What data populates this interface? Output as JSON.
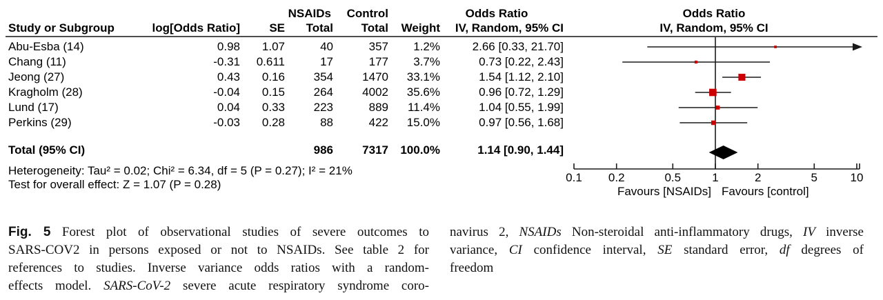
{
  "colors": {
    "marker_red": "#cc0000",
    "line_dark": "#1a1a1a",
    "rule_gray": "#4d4d4d",
    "diamond_black": "#000000"
  },
  "table": {
    "header": {
      "group_nsaids": "NSAIDs",
      "group_control": "Control",
      "col_study": "Study or Subgroup",
      "col_logor": "log[Odds Ratio]",
      "col_se": "SE",
      "col_total_nsaids": "Total",
      "col_total_control": "Total",
      "col_weight": "Weight",
      "col_or_title": "Odds Ratio",
      "col_or_sub": "IV, Random, 95% CI",
      "plot_title": "Odds Ratio",
      "plot_sub": "IV, Random, 95% CI"
    },
    "rows": [
      {
        "study": "Abu-Esba (14)",
        "logor": "0.98",
        "se": "1.07",
        "n_nsaids": "40",
        "n_control": "357",
        "weight": "1.2%",
        "or_ci": "2.66 [0.33, 21.70]"
      },
      {
        "study": "Chang (11)",
        "logor": "-0.31",
        "se": "0.611",
        "n_nsaids": "17",
        "n_control": "177",
        "weight": "3.7%",
        "or_ci": "0.73 [0.22, 2.43]"
      },
      {
        "study": "Jeong (27)",
        "logor": "0.43",
        "se": "0.16",
        "n_nsaids": "354",
        "n_control": "1470",
        "weight": "33.1%",
        "or_ci": "1.54 [1.12, 2.10]"
      },
      {
        "study": "Kragholm (28)",
        "logor": "-0.04",
        "se": "0.15",
        "n_nsaids": "264",
        "n_control": "4002",
        "weight": "35.6%",
        "or_ci": "0.96 [0.72, 1.29]"
      },
      {
        "study": "Lund (17)",
        "logor": "0.04",
        "se": "0.33",
        "n_nsaids": "223",
        "n_control": "889",
        "weight": "11.4%",
        "or_ci": "1.04 [0.55, 1.99]"
      },
      {
        "study": "Perkins (29)",
        "logor": "-0.03",
        "se": "0.28",
        "n_nsaids": "88",
        "n_control": "422",
        "weight": "15.0%",
        "or_ci": "0.97 [0.56, 1.68]"
      }
    ],
    "total": {
      "label": "Total (95% CI)",
      "n_nsaids": "986",
      "n_control": "7317",
      "weight": "100.0%",
      "or_ci": "1.14 [0.90, 1.44]"
    },
    "heterogeneity": "Heterogeneity: Tau² = 0.02; Chi² = 6.34, df = 5 (P = 0.27); I² = 21%",
    "overall_effect": "Test for overall effect: Z = 1.07 (P = 0.28)"
  },
  "chart_data": {
    "type": "forest",
    "title": "Odds Ratio",
    "subtitle": "IV, Random, 95% CI",
    "x_axis": {
      "scale": "log10",
      "min": 0.1,
      "max": 10,
      "ticks": [
        "0.1",
        "0.2",
        "0.5",
        "1",
        "2",
        "5",
        "10"
      ],
      "label_left": "Favours [NSAIDs]",
      "label_right": "Favours [control]"
    },
    "studies": [
      {
        "name": "Abu-Esba (14)",
        "or": 2.66,
        "ci_low": 0.33,
        "ci_high": 21.7,
        "weight_pct": 1.2
      },
      {
        "name": "Chang (11)",
        "or": 0.73,
        "ci_low": 0.22,
        "ci_high": 2.43,
        "weight_pct": 3.7
      },
      {
        "name": "Jeong (27)",
        "or": 1.54,
        "ci_low": 1.12,
        "ci_high": 2.1,
        "weight_pct": 33.1
      },
      {
        "name": "Kragholm (28)",
        "or": 0.96,
        "ci_low": 0.72,
        "ci_high": 1.29,
        "weight_pct": 35.6
      },
      {
        "name": "Lund (17)",
        "or": 1.04,
        "ci_low": 0.55,
        "ci_high": 1.99,
        "weight_pct": 11.4
      },
      {
        "name": "Perkins (29)",
        "or": 0.97,
        "ci_low": 0.56,
        "ci_high": 1.68,
        "weight_pct": 15.0
      }
    ],
    "total": {
      "or": 1.14,
      "ci_low": 0.9,
      "ci_high": 1.44
    }
  },
  "caption": {
    "left_lines": [
      {
        "last": false,
        "segs": [
          {
            "t": "Fig. 5",
            "s": "figbold"
          },
          {
            "t": "  Forest plot of observational studies of severe outcomes to",
            "s": ""
          }
        ]
      },
      {
        "last": false,
        "segs": [
          {
            "t": "SARS-COV2 in persons exposed or not to NSAIDs. See table 2 for",
            "s": ""
          }
        ]
      },
      {
        "last": false,
        "segs": [
          {
            "t": "references to studies. Inverse variance odds ratios with a random-",
            "s": ""
          }
        ]
      },
      {
        "last": false,
        "segs": [
          {
            "t": "effects model. ",
            "s": ""
          },
          {
            "t": "SARS-CoV-2",
            "s": "i"
          },
          {
            "t": " severe acute respiratory syndrome coro-",
            "s": ""
          }
        ]
      }
    ],
    "right_lines": [
      {
        "last": false,
        "segs": [
          {
            "t": "navirus 2, ",
            "s": ""
          },
          {
            "t": "NSAIDs",
            "s": "i"
          },
          {
            "t": " Non-steroidal anti-inflammatory drugs, ",
            "s": ""
          },
          {
            "t": "IV",
            "s": "i"
          },
          {
            "t": " inverse",
            "s": ""
          }
        ]
      },
      {
        "last": false,
        "segs": [
          {
            "t": "variance, ",
            "s": ""
          },
          {
            "t": "CI",
            "s": "i"
          },
          {
            "t": " confidence interval, ",
            "s": ""
          },
          {
            "t": "SE",
            "s": "i"
          },
          {
            "t": " standard error, ",
            "s": ""
          },
          {
            "t": "df",
            "s": "i"
          },
          {
            "t": " degrees of",
            "s": ""
          }
        ]
      },
      {
        "last": true,
        "segs": [
          {
            "t": "freedom",
            "s": ""
          }
        ]
      }
    ]
  }
}
